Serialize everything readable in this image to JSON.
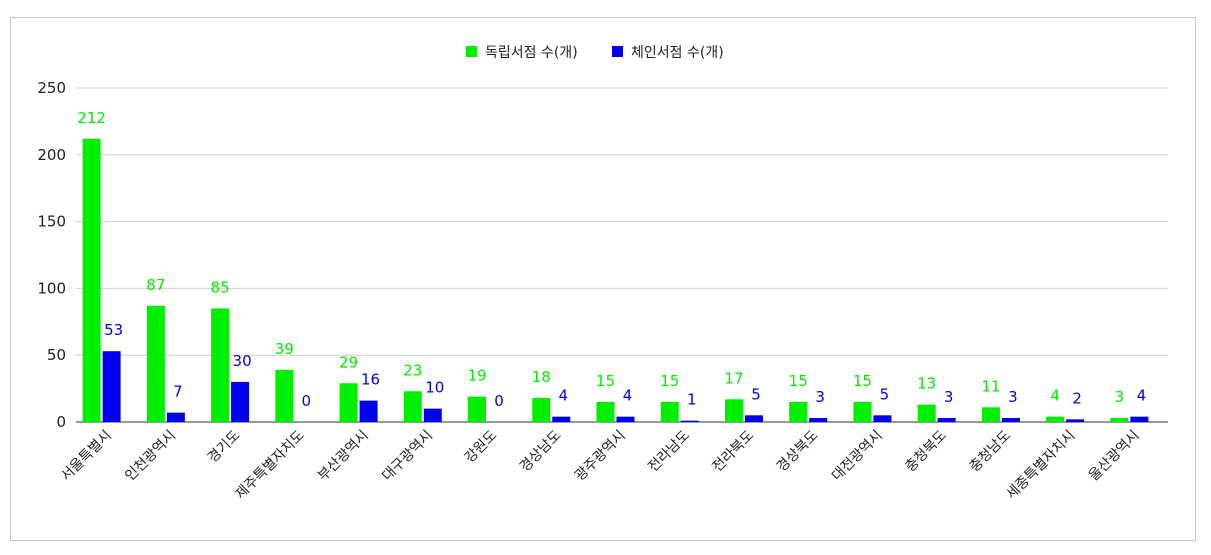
{
  "chart_data": {
    "type": "bar",
    "categories": [
      "서울특별시",
      "인천광역시",
      "경기도",
      "제주특별자치도",
      "부산광역시",
      "대구광역시",
      "강원도",
      "경상남도",
      "광주광역시",
      "전라남도",
      "전라북도",
      "경상북도",
      "대전광역시",
      "충청북도",
      "충청남도",
      "세종특별자치시",
      "울산광역시"
    ],
    "series": [
      {
        "name": "독립서점 수(개)",
        "color": "#00ee00",
        "values": [
          212,
          87,
          85,
          39,
          29,
          23,
          19,
          18,
          15,
          15,
          17,
          15,
          15,
          13,
          11,
          4,
          3
        ]
      },
      {
        "name": "체인서점 수(개)",
        "color": "#0000ee",
        "values": [
          53,
          7,
          30,
          0,
          16,
          10,
          0,
          4,
          4,
          1,
          5,
          3,
          5,
          3,
          3,
          2,
          4
        ]
      }
    ],
    "yticks": [
      "0",
      "50",
      "100",
      "150",
      "200",
      "250"
    ],
    "ylim": [
      0,
      250
    ],
    "grid": true,
    "legend": "top-center",
    "data_labels": true,
    "title": "",
    "xlabel": "",
    "ylabel": ""
  }
}
